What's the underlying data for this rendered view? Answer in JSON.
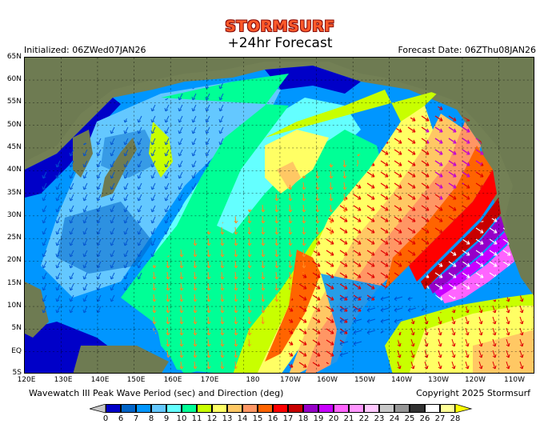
{
  "header": {
    "brand": "STORMSURF",
    "title": "+24hr Forecast",
    "initialized": "Initialized: 06ZWed07JAN26",
    "forecast_date": "Forecast Date: 06ZThu08JAN26"
  },
  "axes": {
    "lat_labels": [
      "65N",
      "60N",
      "55N",
      "50N",
      "45N",
      "40N",
      "35N",
      "30N",
      "25N",
      "20N",
      "15N",
      "10N",
      "5N",
      "EQ",
      "5S"
    ],
    "lon_labels": [
      "120E",
      "130E",
      "140E",
      "150E",
      "160E",
      "170E",
      "180",
      "170W",
      "160W",
      "150W",
      "140W",
      "130W",
      "120W",
      "110W"
    ]
  },
  "footer": {
    "caption": "Wavewatch III Peak Wave Period (sec) and Direction (deg)",
    "copyright": "Copyright 2025 Stormsurf"
  },
  "legend": {
    "unit": "sec",
    "labels": [
      "0",
      "6",
      "7",
      "8",
      "9",
      "10",
      "11",
      "12",
      "13",
      "14",
      "15",
      "16",
      "17",
      "18",
      "19",
      "20",
      "21",
      "22",
      "23",
      "24",
      "25",
      "26",
      "27",
      "28"
    ],
    "colors": [
      "#0000c8",
      "#0064c8",
      "#0096ff",
      "#64c8ff",
      "#64ffff",
      "#00ff96",
      "#c8ff00",
      "#ffff64",
      "#ffc864",
      "#ff9664",
      "#ff6400",
      "#ff0000",
      "#c80000",
      "#9600c8",
      "#c800ff",
      "#ff64ff",
      "#ff96ff",
      "#ffc8ff",
      "#c8c8c8",
      "#969696",
      "#323232",
      "#ffffff",
      "#ffff96"
    ],
    "under_color": "#c8c8c8",
    "over_color": "#ffff00"
  },
  "map": {
    "region": "North Pacific",
    "lon_range": [
      "120E",
      "110W"
    ],
    "lat_range": [
      "5S",
      "65N"
    ],
    "land_color": "#6e7b52",
    "max_period_region": "Northeast Pacific off California/Oregon, 20-21 sec",
    "features": [
      {
        "name": "long-period swell band",
        "period_range": "15-21 sec",
        "location": "NE Pacific 25N-50N, 120W-145W"
      },
      {
        "name": "tropical east Pacific swell",
        "period_range": "12-14 sec",
        "location": "EQ-20N, 110W-150W"
      },
      {
        "name": "west Pacific short period",
        "period_range": "6-10 sec",
        "location": "Japan to Philippines"
      }
    ]
  }
}
